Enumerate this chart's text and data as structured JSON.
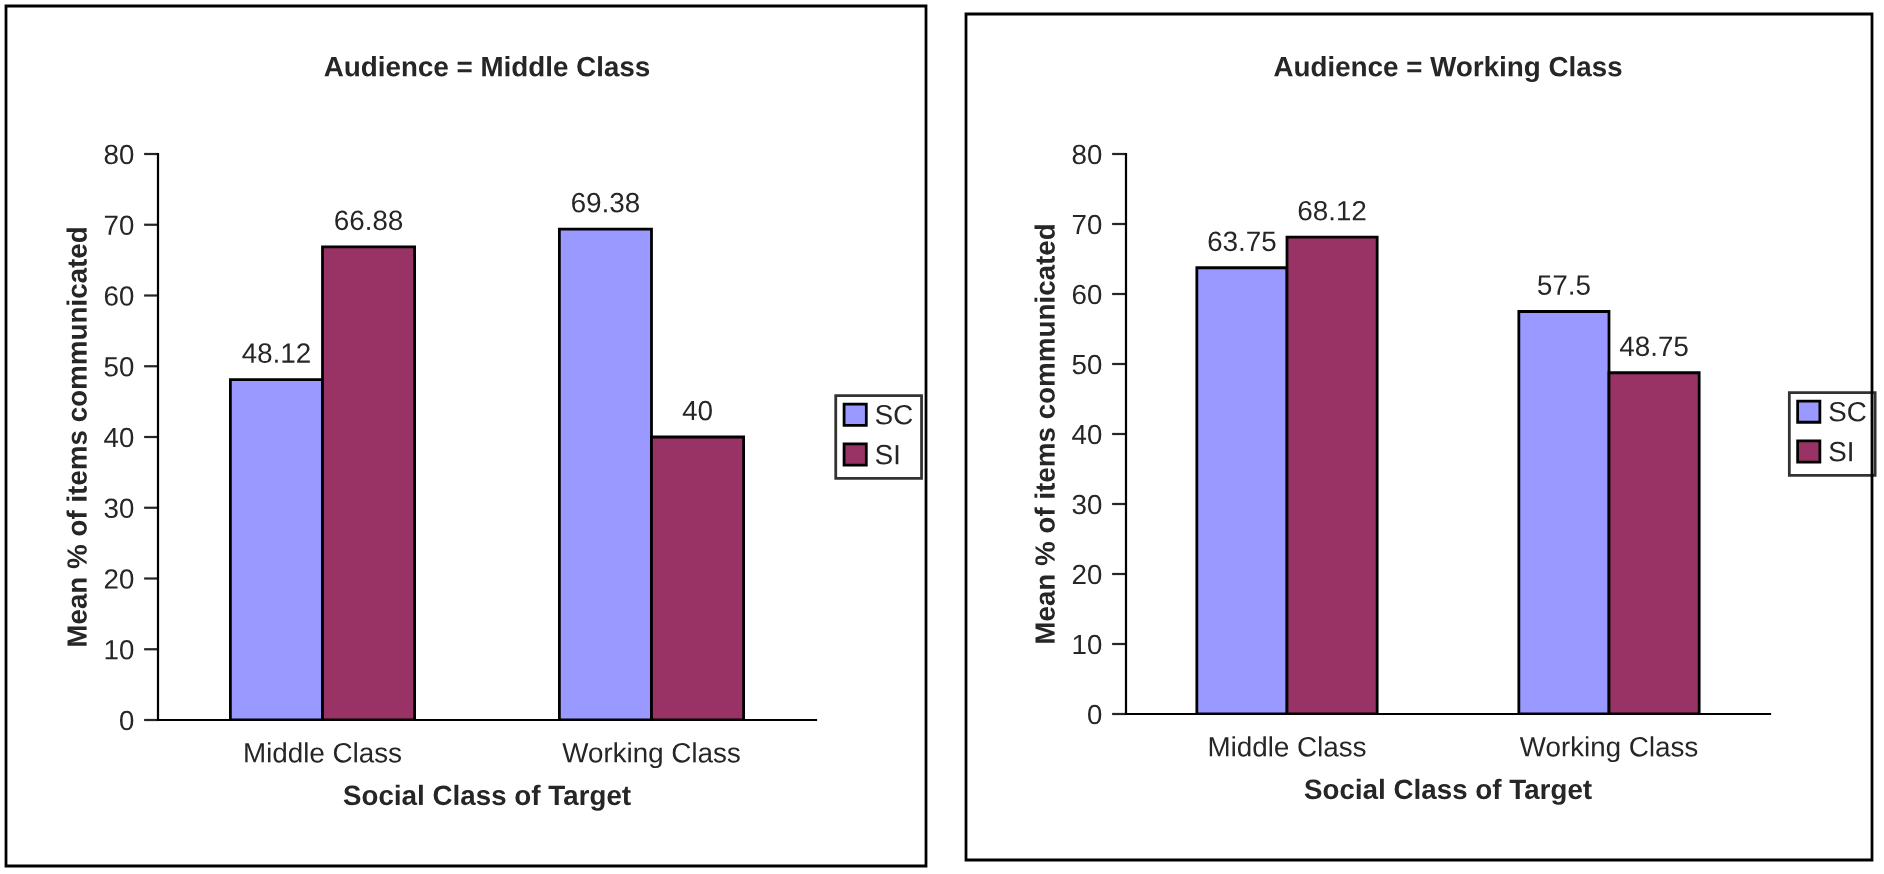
{
  "chart_data": [
    {
      "type": "bar",
      "title": "Audience = Middle Class",
      "xlabel": "Social Class of Target",
      "ylabel": "Mean % of items communicated",
      "categories": [
        "Middle Class",
        "Working Class"
      ],
      "series": [
        {
          "name": "SC",
          "color": "#9999ff",
          "values": [
            48.12,
            69.38
          ]
        },
        {
          "name": "SI",
          "color": "#993366",
          "values": [
            66.88,
            40
          ]
        }
      ],
      "ylim": [
        0,
        80
      ],
      "yticks": [
        0,
        10,
        20,
        30,
        40,
        50,
        60,
        70,
        80
      ],
      "data_labels": true,
      "legend": "right",
      "grid": false
    },
    {
      "type": "bar",
      "title": "Audience = Working Class",
      "xlabel": "Social Class of Target",
      "ylabel": "Mean % of items communicated",
      "categories": [
        "Middle Class",
        "Working Class"
      ],
      "series": [
        {
          "name": "SC",
          "color": "#9999ff",
          "values": [
            63.75,
            57.5
          ]
        },
        {
          "name": "SI",
          "color": "#993366",
          "values": [
            68.12,
            48.75
          ]
        }
      ],
      "ylim": [
        0,
        80
      ],
      "yticks": [
        0,
        10,
        20,
        30,
        40,
        50,
        60,
        70,
        80
      ],
      "data_labels": true,
      "legend": "right",
      "grid": false
    }
  ]
}
